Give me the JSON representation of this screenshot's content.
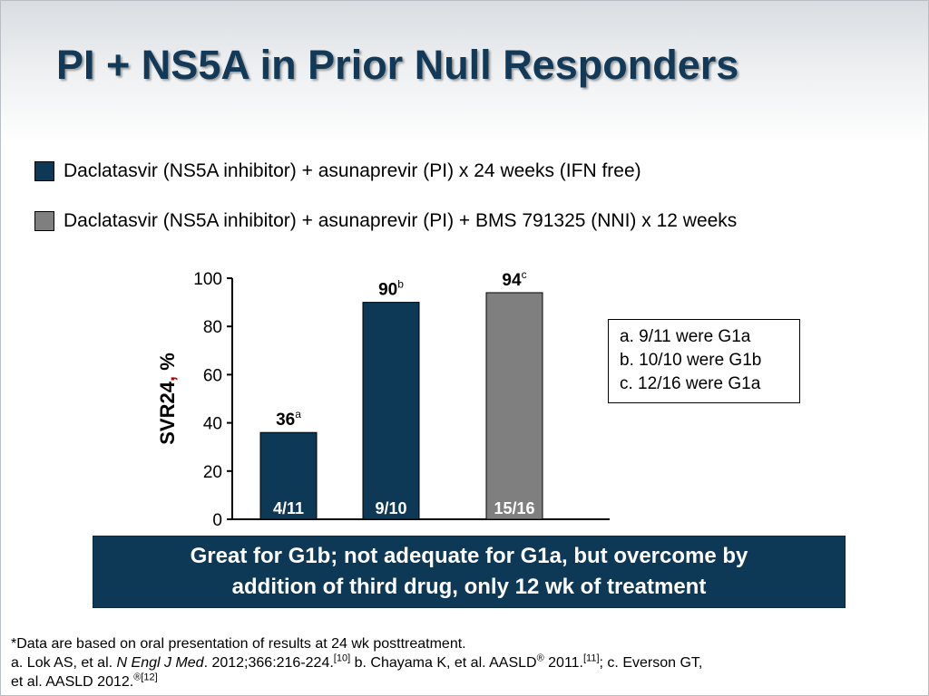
{
  "slide": {
    "title": "PI + NS5A in Prior Null Responders"
  },
  "legend": {
    "items": [
      {
        "label": "Daclatasvir (NS5A inhibitor) + asunaprevir (PI) x 24 weeks (IFN free)",
        "color": "#0e3956"
      },
      {
        "label": "Daclatasvir (NS5A inhibitor) + asunaprevir (PI) + BMS 791325 (NNI) x 12 weeks",
        "color": "#7f7f7f"
      }
    ]
  },
  "chart_data": {
    "type": "bar",
    "ylabel_main": "SVR24",
    "ylabel_comma": ",",
    "ylabel_unit": " %",
    "ylim": [
      0,
      100
    ],
    "yticks": [
      "0",
      "20",
      "40",
      "60",
      "80",
      "100"
    ],
    "grid": false,
    "bars": [
      {
        "value": 36,
        "label": "36",
        "sup": "a",
        "inner_label": "4/11",
        "color": "#0e3956"
      },
      {
        "value": 90,
        "label": "90",
        "sup": "b",
        "inner_label": "9/10",
        "color": "#0e3956"
      },
      {
        "value": 94,
        "label": "94",
        "sup": "c",
        "inner_label": "15/16",
        "color": "#7f7f7f"
      }
    ]
  },
  "notes": [
    "a. 9/11 were G1a",
    "b. 10/10 were G1b",
    "c. 12/16 were G1a"
  ],
  "banner": {
    "line1": "Great for G1b; not adequate for G1a, but overcome by",
    "line2": "addition of third drug, only 12 wk of treatment"
  },
  "footnotes": {
    "line1": "*Data are based on oral presentation of results at 24 wk posttreatment.",
    "line2_a": "a. Lok AS, et al. ",
    "line2_journal": "N Engl J Med",
    "line2_b": ". 2012;366:216-224.",
    "line2_ref1": "[10]",
    "line2_c": " b. Chayama K, et al. AASLD",
    "line2_reg1": "®",
    "line2_d": " 2011.",
    "line2_ref2": "[11]",
    "line2_e": "; c. Everson GT,",
    "line3_a": "et al. AASLD 2012.",
    "line3_reg": "®",
    "line3_ref": "[12]"
  },
  "colors": {
    "title": "#123a58",
    "dark_bar": "#0e3956",
    "gray_bar": "#7f7f7f",
    "ylabel_comma": "#c00000"
  }
}
